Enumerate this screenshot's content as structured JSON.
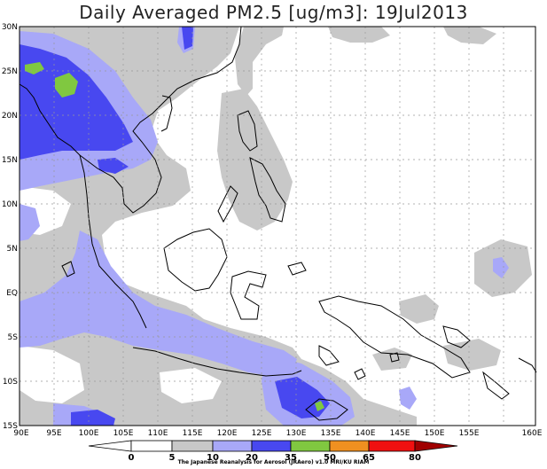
{
  "title": "Daily Averaged PM2.5 [ug/m3]: 19Jul2013",
  "credit": "The Japanese Reanalysis for Aerosol (JRAero) v1.0 MRI/KU RIAM",
  "map": {
    "lat_ticks": [
      "30N",
      "25N",
      "20N",
      "15N",
      "10N",
      "5N",
      "EQ",
      "5S",
      "10S",
      "15S"
    ],
    "lon_ticks": [
      "90E",
      "95E",
      "100E",
      "105E",
      "110E",
      "115E",
      "120E",
      "125E",
      "130E",
      "135E",
      "140E",
      "145E",
      "150E",
      "155E",
      "160E"
    ],
    "grid": true
  },
  "colorbar": {
    "labels": [
      "0",
      "5",
      "10",
      "20",
      "35",
      "50",
      "65",
      "80"
    ],
    "colors": [
      "#ffffff",
      "#c8c8c8",
      "#a8a8f8",
      "#4848f0",
      "#80c840",
      "#f09020",
      "#f01010",
      "#a00000"
    ]
  },
  "palette": {
    "gray": "#c8c8c8",
    "light_blue": "#a8a8f8",
    "blue": "#4848f0",
    "green": "#80c840"
  }
}
